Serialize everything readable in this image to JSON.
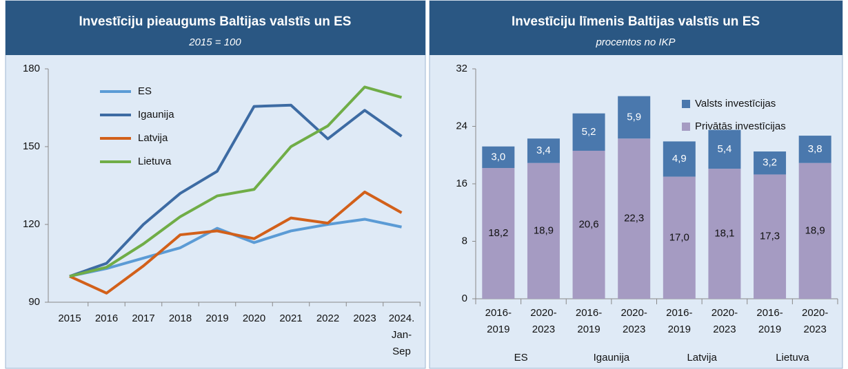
{
  "chart_data": [
    {
      "type": "line",
      "title": "Investīciju pieaugums Baltijas valstīs un ES",
      "subtitle": "2015 = 100",
      "categories": [
        "2015",
        "2016",
        "2017",
        "2018",
        "2019",
        "2020",
        "2021",
        "2022",
        "2023",
        "2024. Jan-Sep"
      ],
      "series": [
        {
          "name": "ES",
          "color": "#5b9bd5",
          "values": [
            100,
            103,
            107,
            111,
            118.5,
            113,
            117.5,
            120,
            122,
            119
          ]
        },
        {
          "name": "Igaunija",
          "color": "#3d6ba3",
          "values": [
            100,
            105,
            120,
            132,
            140.5,
            165.5,
            166,
            153,
            164,
            154
          ]
        },
        {
          "name": "Latvija",
          "color": "#d2601a",
          "values": [
            100,
            93.5,
            104,
            116,
            117.5,
            114.5,
            122.5,
            120.5,
            132.5,
            124.5
          ]
        },
        {
          "name": "Lietuva",
          "color": "#70ad47",
          "values": [
            100,
            103.5,
            112.5,
            123,
            131,
            133.5,
            150,
            158,
            173,
            169
          ]
        }
      ],
      "ylim": [
        90,
        180
      ],
      "yticks": [
        90,
        120,
        150,
        180
      ],
      "legend": "upper left"
    },
    {
      "type": "stacked_bar",
      "title": "Investīciju līmenis Baltijas valstīs un ES",
      "subtitle": "procentos no IKP",
      "categories": [
        "2016-2019",
        "2020-2023",
        "2016-2019",
        "2020-2023",
        "2016-2019",
        "2020-2023",
        "2016-2019",
        "2020-2023"
      ],
      "groups": [
        "ES",
        "Igaunija",
        "Latvija",
        "Lietuva"
      ],
      "series": [
        {
          "name": "Privātās investīcijas",
          "color": "#a59bc2",
          "values": [
            18.2,
            18.9,
            20.6,
            22.3,
            17.0,
            18.1,
            17.3,
            18.9
          ],
          "value_labels": [
            "18,2",
            "18,9",
            "20,6",
            "22,3",
            "17,0",
            "18,1",
            "17,3",
            "18,9"
          ]
        },
        {
          "name": "Valsts investīcijas",
          "color": "#4a78ad",
          "values": [
            3.0,
            3.4,
            5.2,
            5.9,
            4.9,
            5.4,
            3.2,
            3.8
          ],
          "value_labels": [
            "3,0",
            "3,4",
            "5,2",
            "5,9",
            "4,9",
            "5,4",
            "3,2",
            "3,8"
          ]
        }
      ],
      "ylim": [
        0,
        32
      ],
      "yticks": [
        0,
        8,
        16,
        24,
        32
      ],
      "legend": "upper right"
    }
  ]
}
